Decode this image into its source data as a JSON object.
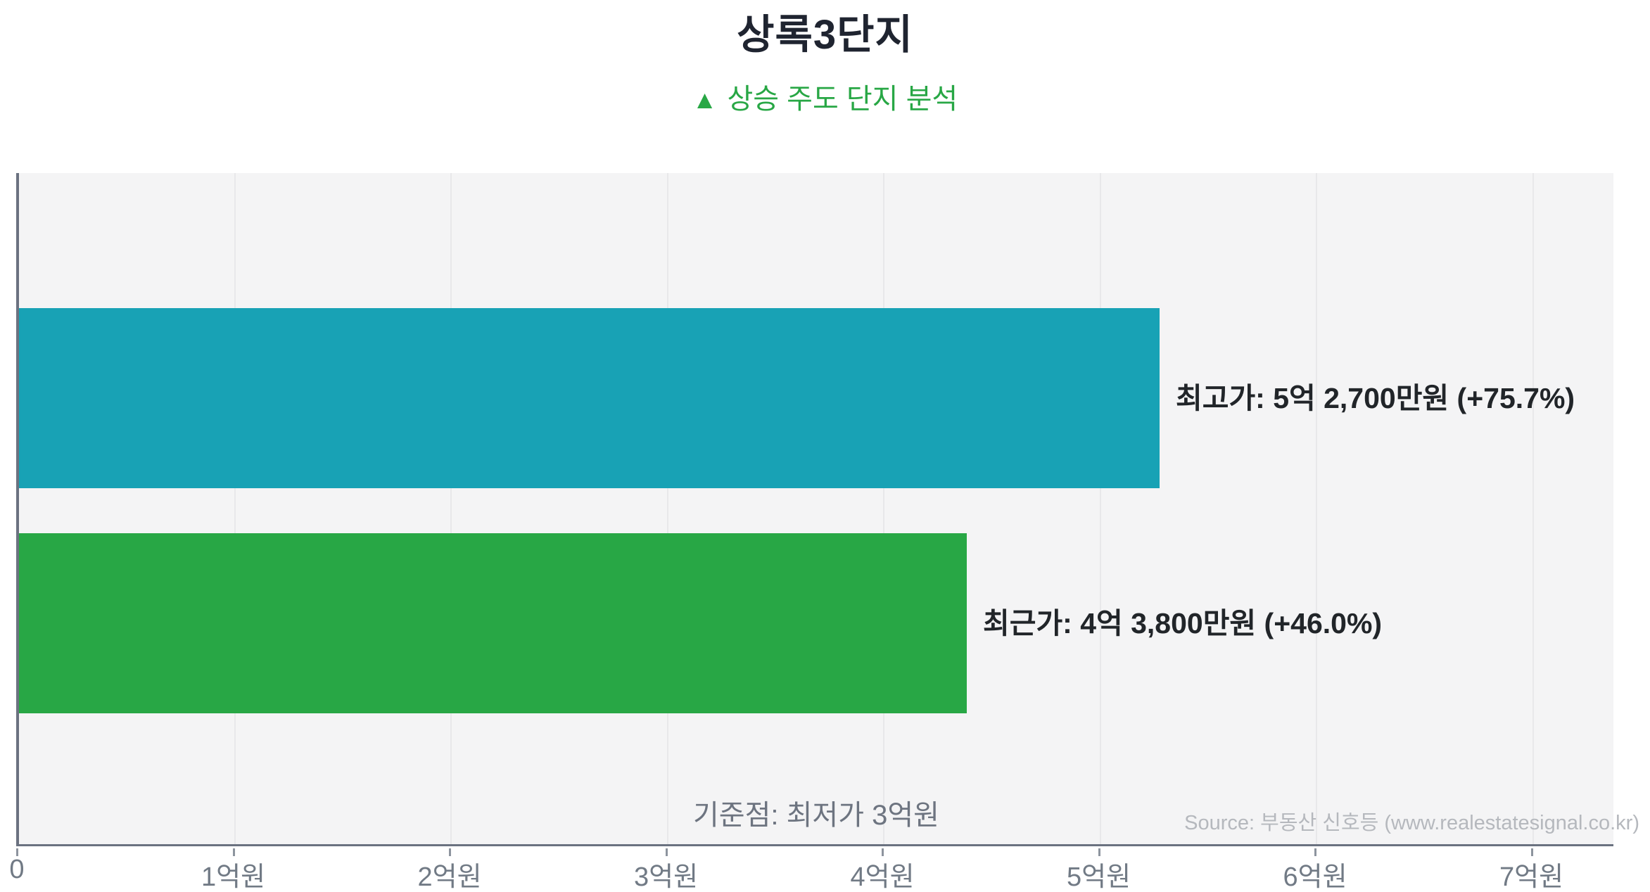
{
  "header": {
    "title": "상록3단지",
    "subtitle_icon": "▲",
    "subtitle_text": "상승 주도 단지 분석"
  },
  "chart_data": {
    "type": "bar",
    "orientation": "horizontal",
    "title": "상록3단지",
    "subtitle": "▲ 상승 주도 단지 분석",
    "categories": [
      "최고가",
      "최근가"
    ],
    "series": [
      {
        "name": "최고가",
        "value_eok": 5.27,
        "value_text": "5억 2,700만원",
        "percent_change": "+75.7%",
        "label": "최고가: 5억 2,700만원 (+75.7%)",
        "color": "#18a2b5"
      },
      {
        "name": "최근가",
        "value_eok": 4.38,
        "value_text": "4억 3,800만원",
        "percent_change": "+46.0%",
        "label": "최근가: 4억 3,800만원 (+46.0%)",
        "color": "#28a745"
      }
    ],
    "baseline_note": "기준점: 최저가 3억원",
    "baseline_value_eok": 3,
    "x_ticks": [
      {
        "value_eok": 0,
        "label": "0"
      },
      {
        "value_eok": 1,
        "label": "1억원"
      },
      {
        "value_eok": 2,
        "label": "2억원"
      },
      {
        "value_eok": 3,
        "label": "3억원"
      },
      {
        "value_eok": 4,
        "label": "4억원"
      },
      {
        "value_eok": 5,
        "label": "5억원"
      },
      {
        "value_eok": 6,
        "label": "6억원"
      },
      {
        "value_eok": 7,
        "label": "7억원"
      }
    ],
    "xlim_eok": [
      0,
      7.38
    ],
    "grid": true,
    "legend": false,
    "source": "Source: 부동산 신호등 (www.realestatesignal.co.kr)"
  },
  "colors": {
    "bar_highest": "#18a2b5",
    "bar_recent": "#28a745",
    "accent_green": "#28a745",
    "plot_background": "#f4f4f5",
    "axis_line": "#6b7280",
    "gridline": "#e8e8ea",
    "title_text": "#1f2430",
    "label_text": "#212529",
    "muted_text": "#6d7480",
    "source_text": "#b5b8bd"
  }
}
